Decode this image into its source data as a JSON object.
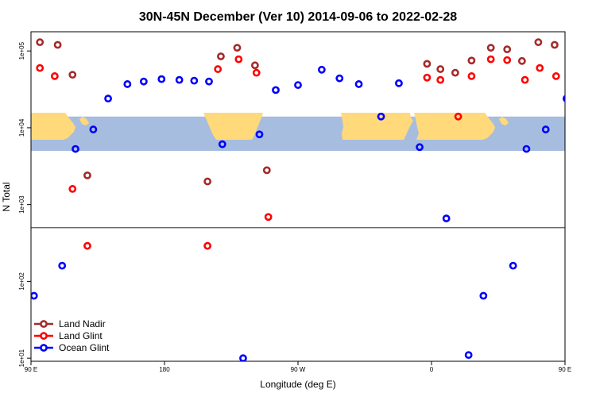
{
  "chart_data": {
    "type": "scatter",
    "title": "30N-45N December (Ver 10)   2014-09-06 to 2022-02-28",
    "xlabel": "Longitude (deg E)",
    "ylabel": "N Total",
    "x_scale": "longitude",
    "y_scale": "log",
    "xlim": [
      90,
      450
    ],
    "ylim_log10": [
      0.96,
      5.25
    ],
    "xticks": [
      {
        "value": 90,
        "label": "90 E"
      },
      {
        "value": 180,
        "label": "180"
      },
      {
        "value": 270,
        "label": "90 W"
      },
      {
        "value": 360,
        "label": "0"
      },
      {
        "value": 450,
        "label": "90 E"
      },
      {
        "value": 540,
        "label": "180"
      }
    ],
    "yticks": [
      {
        "value": 10,
        "label": "1e+01"
      },
      {
        "value": 100,
        "label": "1e+02"
      },
      {
        "value": 1000,
        "label": "1e+03"
      },
      {
        "value": 10000,
        "label": "1e+04"
      },
      {
        "value": 100000,
        "label": "1e+05"
      }
    ],
    "reference_line_y": 500,
    "map_band_y_range": [
      5000,
      14000
    ],
    "legend_position": "bottom-left",
    "series": [
      {
        "name": "Land Nadir",
        "color": "#a52a2a",
        "points": [
          [
            96,
            130000
          ],
          [
            108,
            120000
          ],
          [
            118,
            49000
          ],
          [
            128,
            2400
          ],
          [
            209,
            2000
          ],
          [
            218,
            85000
          ],
          [
            229,
            110000
          ],
          [
            241,
            65000
          ],
          [
            249,
            2800
          ],
          [
            357,
            68000
          ],
          [
            366,
            58000
          ],
          [
            376,
            52000
          ],
          [
            387,
            75000
          ],
          [
            400,
            110000
          ],
          [
            411,
            105000
          ],
          [
            421,
            74000
          ],
          [
            432,
            130000
          ],
          [
            443,
            120000
          ],
          [
            457,
            49000
          ],
          [
            467,
            2400
          ]
        ]
      },
      {
        "name": "Land Glint",
        "color": "#ff0000",
        "points": [
          [
            96,
            60000
          ],
          [
            106,
            47000
          ],
          [
            118,
            1600
          ],
          [
            128,
            290
          ],
          [
            209,
            290
          ],
          [
            216,
            58000
          ],
          [
            230,
            78000
          ],
          [
            242,
            52000
          ],
          [
            250,
            690
          ],
          [
            357,
            45000
          ],
          [
            366,
            42000
          ],
          [
            378,
            14000
          ],
          [
            387,
            47000
          ],
          [
            400,
            78000
          ],
          [
            411,
            76000
          ],
          [
            423,
            42000
          ],
          [
            433,
            60000
          ],
          [
            444,
            47000
          ],
          [
            457,
            1600
          ],
          [
            467,
            290
          ]
        ]
      },
      {
        "name": "Ocean Glint",
        "color": "#0000ff",
        "points": [
          [
            92,
            65
          ],
          [
            111,
            160
          ],
          [
            120,
            5300
          ],
          [
            132,
            9500
          ],
          [
            142,
            24000
          ],
          [
            155,
            37000
          ],
          [
            166,
            40000
          ],
          [
            178,
            43000
          ],
          [
            190,
            42000
          ],
          [
            200,
            41000
          ],
          [
            210,
            40000
          ],
          [
            219,
            6100
          ],
          [
            233,
            10
          ],
          [
            244,
            8200
          ],
          [
            255,
            31000
          ],
          [
            270,
            36000
          ],
          [
            286,
            57000
          ],
          [
            298,
            44000
          ],
          [
            311,
            37000
          ],
          [
            326,
            14000
          ],
          [
            338,
            38000
          ],
          [
            352,
            5600
          ],
          [
            370,
            660
          ],
          [
            385,
            11
          ],
          [
            395,
            65
          ],
          [
            415,
            160
          ],
          [
            424,
            5300
          ],
          [
            437,
            9500
          ],
          [
            451,
            24000
          ],
          [
            465,
            38000
          ]
        ]
      }
    ]
  }
}
